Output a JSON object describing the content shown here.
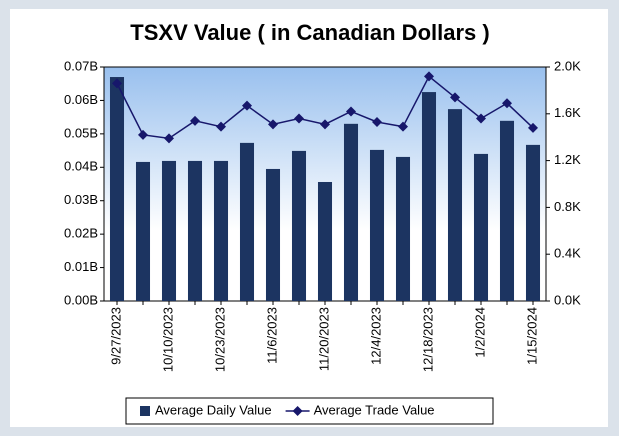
{
  "chart_data": {
    "type": "combo",
    "title": "TSXV Value ( in Canadian Dollars )",
    "categories": [
      "9/27/2023",
      null,
      "10/10/2023",
      null,
      "10/23/2023",
      null,
      "11/6/2023",
      null,
      "11/20/2023",
      null,
      "12/4/2023",
      null,
      "12/18/2023",
      null,
      "1/2/2024",
      null,
      "1/15/2024"
    ],
    "series": [
      {
        "name": "Average Daily Value",
        "type": "bar",
        "color": "#1c3461",
        "values": [
          0.067,
          0.0416,
          0.0419,
          0.0419,
          0.0419,
          0.0473,
          0.0395,
          0.0449,
          0.0356,
          0.053,
          0.0452,
          0.0431,
          0.0625,
          0.0574,
          0.044,
          0.0539,
          0.0467
        ]
      },
      {
        "name": "Average Trade Value",
        "type": "line",
        "axis": "y2",
        "color": "#17176b",
        "values": [
          1.86,
          1.42,
          1.39,
          1.54,
          1.49,
          1.67,
          1.51,
          1.56,
          1.51,
          1.62,
          1.53,
          1.49,
          1.92,
          1.74,
          1.56,
          1.69,
          1.48
        ]
      }
    ],
    "ylim": [
      0,
      0.07
    ],
    "yticks": [
      {
        "value": 0,
        "label": "0.00B"
      },
      {
        "value": 0.01,
        "label": "0.01B"
      },
      {
        "value": 0.02,
        "label": "0.02B"
      },
      {
        "value": 0.03,
        "label": "0.03B"
      },
      {
        "value": 0.04,
        "label": "0.04B"
      },
      {
        "value": 0.05,
        "label": "0.05B"
      },
      {
        "value": 0.06,
        "label": "0.06B"
      },
      {
        "value": 0.07,
        "label": "0.07B"
      }
    ],
    "y2lim": [
      0,
      2.0
    ],
    "y2ticks": [
      {
        "value": 0,
        "label": "0.0K"
      },
      {
        "value": 0.4,
        "label": "0.4K"
      },
      {
        "value": 0.8,
        "label": "0.8K"
      },
      {
        "value": 1.2,
        "label": "1.2K"
      },
      {
        "value": 1.6,
        "label": "1.6K"
      },
      {
        "value": 2.0,
        "label": "2.0K"
      }
    ],
    "legend": "bottom"
  }
}
